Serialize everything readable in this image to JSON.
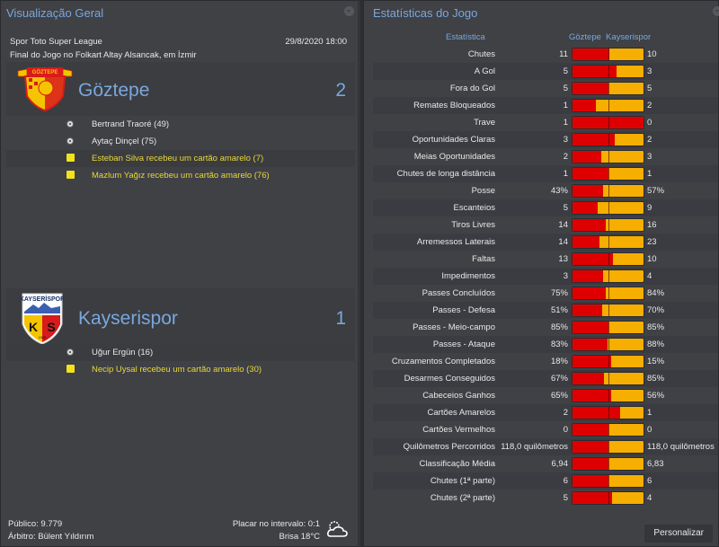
{
  "overview": {
    "title": "Visualização Geral",
    "competition": "Spor Toto Super League",
    "datetime": "29/8/2020 18:00",
    "venue_line": "Final do Jogo no Folkart Altay Alsancak, em İzmir",
    "home": {
      "name": "Göztepe",
      "score": "2",
      "logo_icon": "goztepe-crest",
      "events": [
        {
          "type": "goal",
          "icon": "ball-icon",
          "text": "Bertrand Traoré (49)"
        },
        {
          "type": "goal",
          "icon": "ball-icon",
          "text": "Aytaç Dinçel (75)"
        },
        {
          "type": "card",
          "icon": "yellow-card-icon",
          "text": "Esteban Silva recebeu um cartão amarelo (7)"
        },
        {
          "type": "card",
          "icon": "yellow-card-icon",
          "text": "Mazlum Yağız recebeu um cartão amarelo (76)"
        }
      ]
    },
    "away": {
      "name": "Kayserispor",
      "score": "1",
      "logo_icon": "kayserispor-crest",
      "events": [
        {
          "type": "goal",
          "icon": "ball-icon",
          "text": "Uğur Ergün (16)"
        },
        {
          "type": "card",
          "icon": "yellow-card-icon",
          "text": "Necip Uysal recebeu um cartão amarelo (30)"
        }
      ]
    },
    "footer": {
      "attendance": "Público: 9.779",
      "referee": "Árbitro: Bülent Yıldırım",
      "halftime": "Placar no intervalo: 0:1",
      "weather": "Brisa 18°C",
      "weather_icon": "partly-cloudy-icon"
    }
  },
  "stats": {
    "title": "Estatísticas do Jogo",
    "header": {
      "label": "Estatística",
      "home": "Göztepe",
      "away": "Kayserispor"
    },
    "colors": {
      "home": "#de0000",
      "away": "#f6ae00",
      "title": "#7aa7dd"
    },
    "rows": [
      {
        "label": "Chutes",
        "home": "11",
        "away": "10",
        "home_pct": 52
      },
      {
        "label": "A Gol",
        "home": "5",
        "away": "3",
        "home_pct": 62
      },
      {
        "label": "Fora do Gol",
        "home": "5",
        "away": "5",
        "home_pct": 50
      },
      {
        "label": "Remates Bloqueados",
        "home": "1",
        "away": "2",
        "home_pct": 33
      },
      {
        "label": "Trave",
        "home": "1",
        "away": "0",
        "home_pct": 100
      },
      {
        "label": "Oportunidades Claras",
        "home": "3",
        "away": "2",
        "home_pct": 60
      },
      {
        "label": "Meias Oportunidades",
        "home": "2",
        "away": "3",
        "home_pct": 40
      },
      {
        "label": "Chutes de longa distância",
        "home": "1",
        "away": "1",
        "home_pct": 50
      },
      {
        "label": "Posse",
        "home": "43%",
        "away": "57%",
        "home_pct": 43
      },
      {
        "label": "Escanteios",
        "home": "5",
        "away": "9",
        "home_pct": 36
      },
      {
        "label": "Tiros Livres",
        "home": "14",
        "away": "16",
        "home_pct": 47
      },
      {
        "label": "Arremessos Laterais",
        "home": "14",
        "away": "23",
        "home_pct": 38
      },
      {
        "label": "Faltas",
        "home": "13",
        "away": "10",
        "home_pct": 57
      },
      {
        "label": "Impedimentos",
        "home": "3",
        "away": "4",
        "home_pct": 43
      },
      {
        "label": "Passes Concluídos",
        "home": "75%",
        "away": "84%",
        "home_pct": 47
      },
      {
        "label": "Passes - Defesa",
        "home": "51%",
        "away": "70%",
        "home_pct": 42
      },
      {
        "label": "Passes - Meio-campo",
        "home": "85%",
        "away": "85%",
        "home_pct": 50
      },
      {
        "label": "Passes - Ataque",
        "home": "83%",
        "away": "88%",
        "home_pct": 49
      },
      {
        "label": "Cruzamentos Completados",
        "home": "18%",
        "away": "15%",
        "home_pct": 55
      },
      {
        "label": "Desarmes Conseguidos",
        "home": "67%",
        "away": "85%",
        "home_pct": 44
      },
      {
        "label": "Cabeceios Ganhos",
        "home": "65%",
        "away": "56%",
        "home_pct": 54
      },
      {
        "label": "Cartões Amarelos",
        "home": "2",
        "away": "1",
        "home_pct": 67
      },
      {
        "label": "Cartões Vermelhos",
        "home": "0",
        "away": "0",
        "home_pct": 50
      },
      {
        "label": "Quilômetros Percorridos",
        "home": "118,0 quilômetros",
        "away": "118,0 quilômetros",
        "home_pct": 50
      },
      {
        "label": "Classificação Média",
        "home": "6,94",
        "away": "6,83",
        "home_pct": 50
      },
      {
        "label": "Chutes (1ª parte)",
        "home": "6",
        "away": "6",
        "home_pct": 50
      },
      {
        "label": "Chutes (2ª parte)",
        "home": "5",
        "away": "4",
        "home_pct": 56
      }
    ],
    "customize_button": "Personalizar"
  }
}
